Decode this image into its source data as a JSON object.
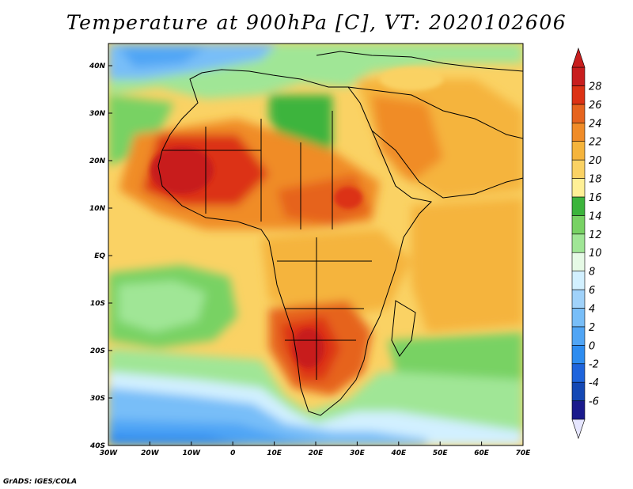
{
  "title": "Temperature at 900hPa [C], VT: 2020102606",
  "credit": "GrADS: IGES/COLA",
  "map": {
    "lon_ticks": [
      "30W",
      "20W",
      "10W",
      "0",
      "10E",
      "20E",
      "30E",
      "40E",
      "50E",
      "60E",
      "70E"
    ],
    "lat_ticks": [
      "40S",
      "30S",
      "20S",
      "10S",
      "EQ",
      "10N",
      "20N",
      "30N",
      "40N"
    ]
  },
  "colorbar": {
    "labels": [
      "-6",
      "-4",
      "-2",
      "0",
      "2",
      "4",
      "6",
      "8",
      "10",
      "12",
      "14",
      "16",
      "18",
      "20",
      "22",
      "24",
      "26",
      "28"
    ],
    "colors": [
      "#1a1a8c",
      "#1448b4",
      "#1e64dc",
      "#2d8cf0",
      "#50a5f5",
      "#78bef8",
      "#a0d2fa",
      "#d2f0ff",
      "#e6fae6",
      "#a0e696",
      "#78d264",
      "#3cb43c",
      "#fff096",
      "#fad264",
      "#f5b43c",
      "#f08c28",
      "#e6641e",
      "#dc3214",
      "#c81e1e"
    ]
  },
  "colors": {
    "ocean_south_cold": "#78bef8",
    "ocean_mid": "#a0e696",
    "land_hot": "#f08c28",
    "land_very_hot": "#dc3214",
    "border": "#000000"
  }
}
